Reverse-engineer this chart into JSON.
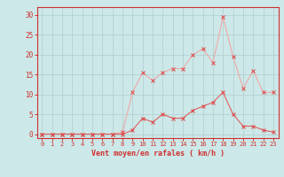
{
  "x": [
    0,
    1,
    2,
    3,
    4,
    5,
    6,
    7,
    8,
    9,
    10,
    11,
    12,
    13,
    14,
    15,
    16,
    17,
    18,
    19,
    20,
    21,
    22,
    23
  ],
  "y_mean": [
    0,
    0,
    0,
    0,
    0,
    0,
    0,
    0,
    0,
    1,
    4,
    3,
    5,
    4,
    4,
    6,
    7,
    8,
    10.5,
    5,
    2,
    2,
    1,
    0.5
  ],
  "y_gust": [
    0,
    0,
    0,
    0,
    0,
    0,
    0,
    0,
    0.5,
    10.5,
    15.5,
    13.5,
    15.5,
    16.5,
    16.5,
    20,
    21.5,
    18,
    29.5,
    19.5,
    11.5,
    16,
    10.5,
    10.5
  ],
  "bg_color": "#cce8e8",
  "line_color_mean": "#e06060",
  "line_color_gust": "#f0a8a8",
  "marker_color": "#e04040",
  "grid_color": "#b0cccc",
  "axis_color": "#d03030",
  "xlabel": "Vent moyen/en rafales ( km/h )",
  "yticks": [
    0,
    5,
    10,
    15,
    20,
    25,
    30
  ],
  "xlim": [
    -0.5,
    23.5
  ],
  "ylim": [
    -1,
    32
  ]
}
